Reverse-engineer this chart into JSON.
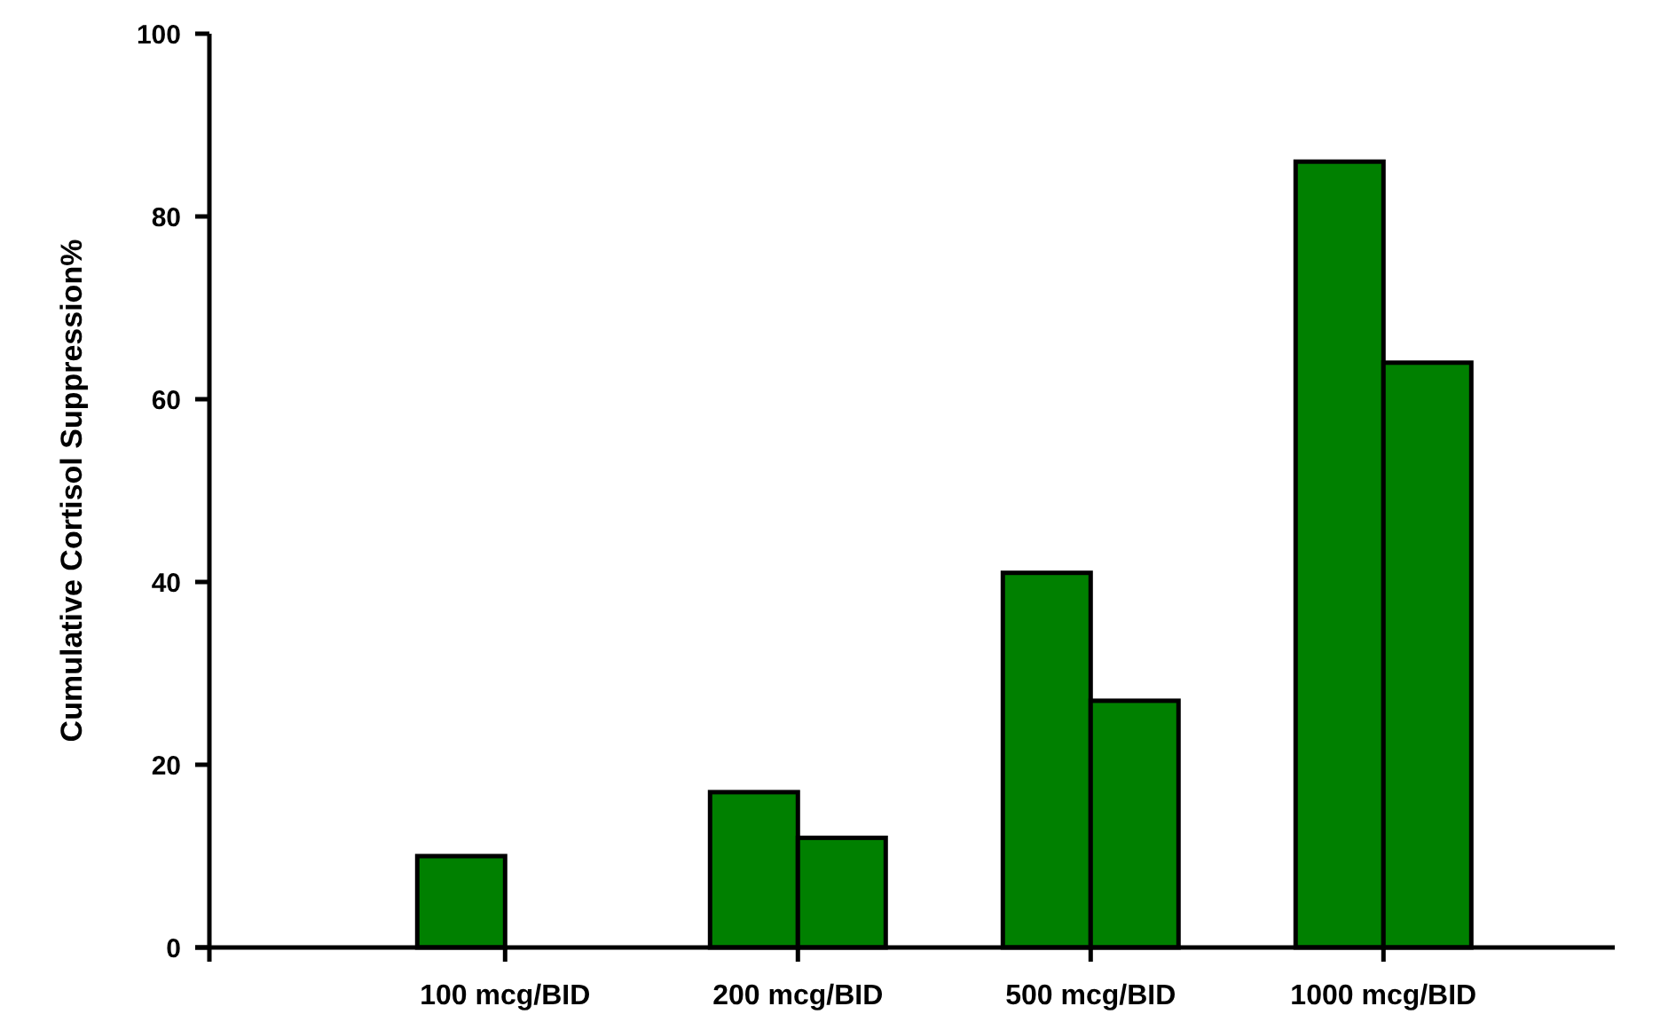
{
  "chart_data": {
    "type": "bar",
    "ylabel": "Cumulative Cortisol Suppression%",
    "categories": [
      "100 mcg/BID",
      "200 mcg/BID",
      "500 mcg/BID",
      "1000 mcg/BID"
    ],
    "series": [
      {
        "color": "#008000",
        "values": [
          10,
          17,
          41,
          86
        ]
      },
      {
        "color": "#008000",
        "values": [
          null,
          12,
          27,
          64
        ]
      }
    ],
    "ylim": [
      0,
      100
    ],
    "yticks": [
      0,
      20,
      40,
      60,
      80,
      100
    ],
    "grid": false
  }
}
